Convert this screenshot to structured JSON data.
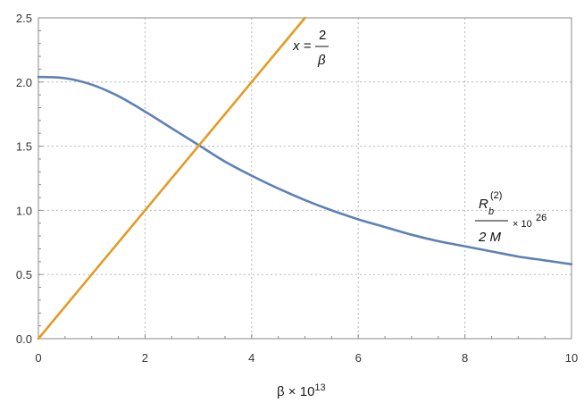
{
  "chart_data": {
    "type": "line",
    "title": "",
    "xlabel": {
      "base": "β × 10",
      "exp": "13"
    },
    "ylabel": "",
    "xlim": [
      0,
      10
    ],
    "ylim": [
      0,
      2.5
    ],
    "grid": true,
    "x_ticks": [
      "0",
      "2",
      "4",
      "6",
      "8",
      "10"
    ],
    "y_ticks": [
      "0.0",
      "0.5",
      "1.0",
      "1.5",
      "2.0",
      "2.5"
    ],
    "series": [
      {
        "color": "#5e81b5",
        "x": [
          0,
          0.5,
          1,
          1.5,
          2,
          2.5,
          3,
          3.5,
          4,
          4.5,
          5,
          5.5,
          6,
          6.5,
          7,
          7.5,
          8,
          8.5,
          9,
          9.5,
          10
        ],
        "y": [
          2.04,
          2.03,
          1.98,
          1.89,
          1.77,
          1.64,
          1.51,
          1.38,
          1.27,
          1.17,
          1.08,
          1.0,
          0.93,
          0.87,
          0.81,
          0.76,
          0.72,
          0.68,
          0.64,
          0.61,
          0.58
        ]
      },
      {
        "color": "#e19c24",
        "x": [
          0,
          5
        ],
        "y": [
          0,
          2.5
        ]
      }
    ],
    "annotations": {
      "line_label": {
        "lhs": "x =",
        "num": "2",
        "den": "β"
      },
      "curve_label": {
        "num_base": "R",
        "num_sub": "b",
        "num_sup": "(2)",
        "den": "2 M",
        "mult": "× 10",
        "exp": "26"
      }
    }
  }
}
